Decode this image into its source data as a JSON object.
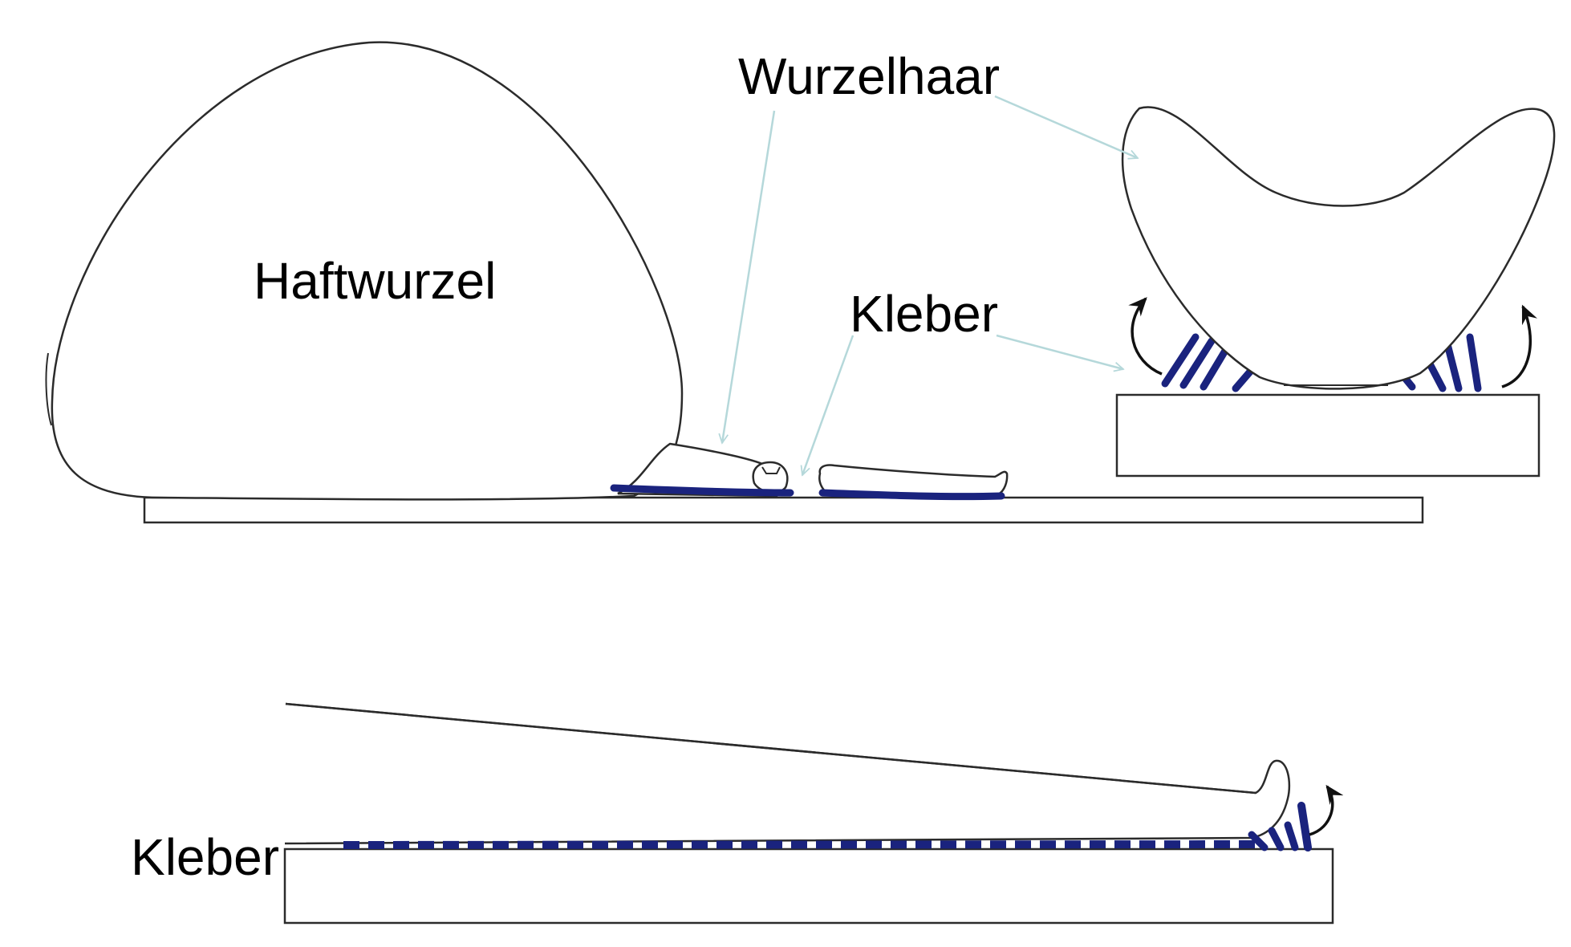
{
  "labels": {
    "haftwurzel": "Haftwurzel",
    "wurzelhaar": "Wurzelhaar",
    "kleber_top": "Kleber",
    "kleber_bottom": "Kleber"
  },
  "colors": {
    "glue": "#1a237e",
    "leader": "#b5d8da",
    "outline": "#2b2b2b",
    "arrow": "#111111"
  }
}
